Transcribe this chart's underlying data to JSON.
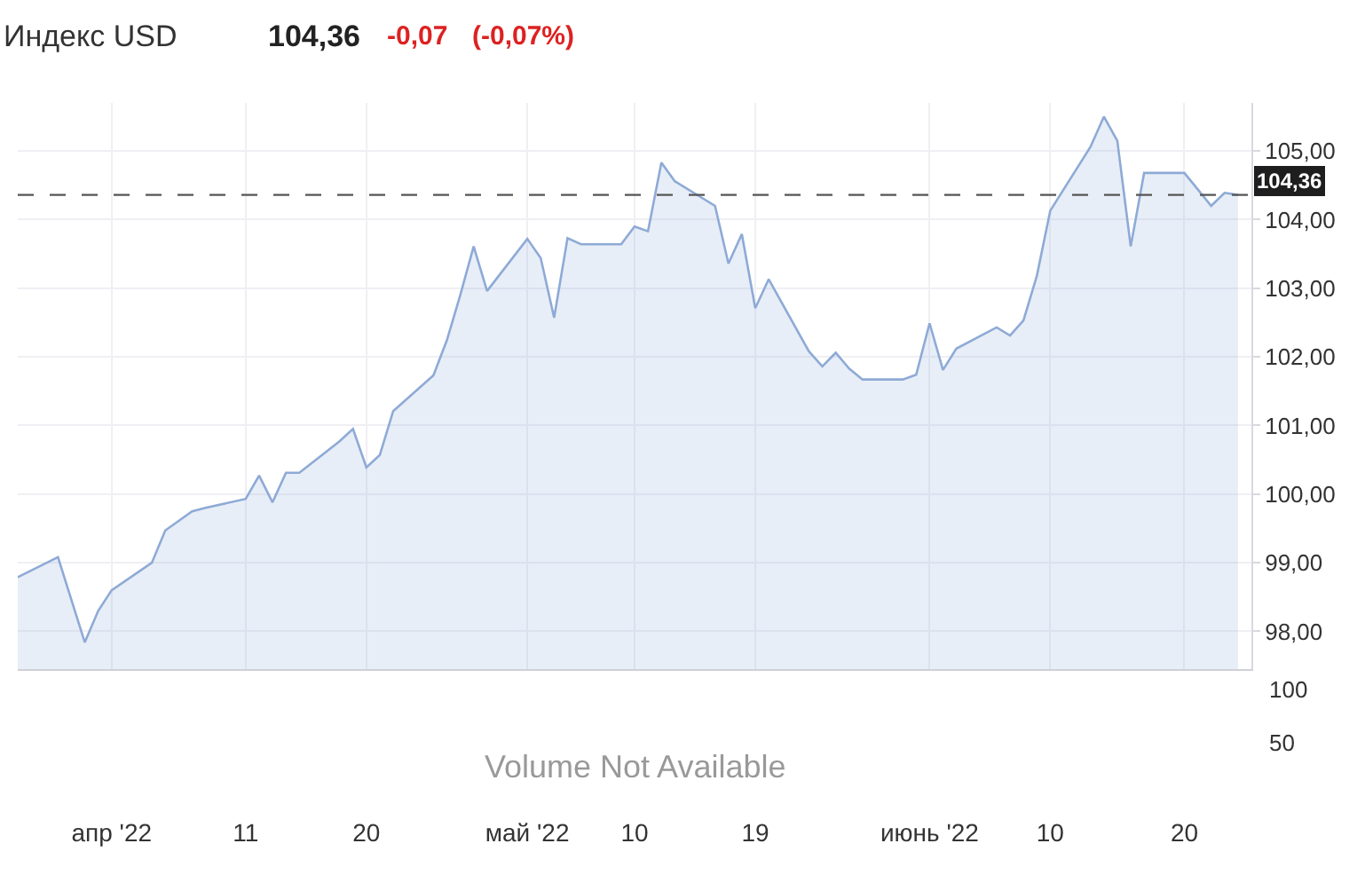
{
  "chart_data": [
    {
      "type": "area",
      "title": "Индекс USD",
      "annotations": [
        "104,36",
        "-0,07",
        "(-0,07%)"
      ],
      "x": [
        "2022-03-25",
        "2022-03-28",
        "2022-03-30",
        "2022-03-31",
        "2022-04-01",
        "2022-04-04",
        "2022-04-05",
        "2022-04-06",
        "2022-04-07",
        "2022-04-08",
        "2022-04-11",
        "2022-04-12",
        "2022-04-13",
        "2022-04-14",
        "2022-04-15",
        "2022-04-18",
        "2022-04-19",
        "2022-04-20",
        "2022-04-21",
        "2022-04-22",
        "2022-04-25",
        "2022-04-26",
        "2022-04-27",
        "2022-04-28",
        "2022-04-29",
        "2022-05-02",
        "2022-05-03",
        "2022-05-04",
        "2022-05-05",
        "2022-05-06",
        "2022-05-09",
        "2022-05-10",
        "2022-05-11",
        "2022-05-12",
        "2022-05-13",
        "2022-05-16",
        "2022-05-17",
        "2022-05-18",
        "2022-05-19",
        "2022-05-20",
        "2022-05-23",
        "2022-05-24",
        "2022-05-25",
        "2022-05-26",
        "2022-05-27",
        "2022-05-30",
        "2022-05-31",
        "2022-06-01",
        "2022-06-02",
        "2022-06-03",
        "2022-06-06",
        "2022-06-07",
        "2022-06-08",
        "2022-06-09",
        "2022-06-10",
        "2022-06-13",
        "2022-06-14",
        "2022-06-15",
        "2022-06-16",
        "2022-06-17",
        "2022-06-20",
        "2022-06-21",
        "2022-06-22",
        "2022-06-23",
        "2022-06-24"
      ],
      "series": [
        {
          "color": "#8eaad6",
          "values": [
            98.79,
            99.08,
            97.84,
            98.3,
            98.6,
            99.0,
            99.47,
            99.61,
            99.75,
            99.8,
            99.93,
            100.27,
            99.88,
            100.31,
            100.31,
            100.77,
            100.95,
            100.39,
            100.57,
            101.21,
            101.73,
            102.24,
            102.9,
            103.61,
            102.96,
            103.72,
            103.44,
            102.57,
            103.73,
            103.64,
            103.64,
            103.9,
            103.83,
            104.83,
            104.56,
            104.2,
            103.36,
            103.79,
            102.71,
            103.13,
            102.08,
            101.86,
            102.06,
            101.83,
            101.67,
            101.67,
            101.74,
            102.49,
            101.81,
            102.12,
            102.43,
            102.31,
            102.53,
            103.18,
            104.13,
            105.06,
            105.5,
            105.15,
            103.61,
            104.68,
            104.68,
            104.44,
            104.2,
            104.39,
            104.36
          ]
        }
      ],
      "xlim": [
        "2022-03-25",
        "2022-06-25"
      ],
      "xticks": [
        {
          "value": "2022-04-01",
          "label": "апр '22"
        },
        {
          "value": "2022-04-11",
          "label": "11"
        },
        {
          "value": "2022-04-20",
          "label": "20"
        },
        {
          "value": "2022-05-02",
          "label": "май '22"
        },
        {
          "value": "2022-05-10",
          "label": "10"
        },
        {
          "value": "2022-05-19",
          "label": "19"
        },
        {
          "value": "2022-06-01",
          "label": "июнь '22"
        },
        {
          "value": "2022-06-10",
          "label": "10"
        },
        {
          "value": "2022-06-20",
          "label": "20"
        }
      ],
      "ylim": [
        97.45,
        105.7
      ],
      "yticks": [
        {
          "value": 98,
          "label": "98,00"
        },
        {
          "value": 99,
          "label": "99,00"
        },
        {
          "value": 100,
          "label": "100,00"
        },
        {
          "value": 101,
          "label": "101,00"
        },
        {
          "value": 102,
          "label": "102,00"
        },
        {
          "value": 103,
          "label": "103,00"
        },
        {
          "value": 104,
          "label": "104,00"
        },
        {
          "value": 105,
          "label": "105,00"
        }
      ],
      "ref_lines": [
        {
          "axis": "y",
          "value": 104.36,
          "label": "104,36",
          "color": "#555555",
          "line_style": "dashed"
        }
      ],
      "grid": true
    },
    {
      "type": "other",
      "annotations": [
        "Volume Not Available",
        "100",
        "50"
      ]
    }
  ]
}
